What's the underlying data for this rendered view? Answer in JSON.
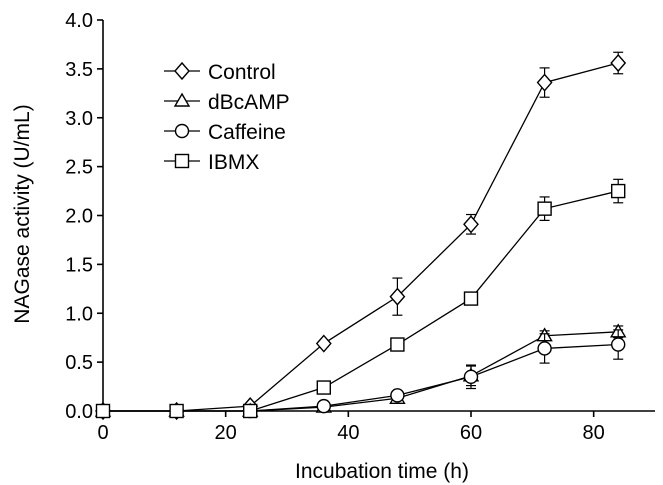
{
  "chart_data": {
    "type": "line",
    "title": "",
    "xlabel": "Incubation time (h)",
    "ylabel": "NAGase activity (U/mL)",
    "xlim": [
      0,
      90
    ],
    "ylim": [
      0,
      4.0
    ],
    "xticks": [
      0,
      20,
      40,
      60,
      80
    ],
    "xtick_labels": [
      "0",
      "20",
      "40",
      "60",
      "80"
    ],
    "yticks": [
      0,
      0.5,
      1.0,
      1.5,
      2.0,
      2.5,
      3.0,
      3.5,
      4.0
    ],
    "ytick_labels": [
      "0.0",
      "0.5",
      "1.0",
      "1.5",
      "2.0",
      "2.5",
      "3.0",
      "3.5",
      "4.0"
    ],
    "grid": false,
    "legend_position": "top-left",
    "x": [
      0,
      12,
      24,
      36,
      48,
      60,
      72,
      84
    ],
    "series": [
      {
        "name": "Control",
        "marker": "diamond",
        "values": [
          0,
          0,
          0.05,
          0.69,
          1.17,
          1.91,
          3.36,
          3.56
        ],
        "errors": [
          0,
          0,
          0,
          0.03,
          0.19,
          0.1,
          0.15,
          0.11
        ]
      },
      {
        "name": "dBcAMP",
        "marker": "triangle",
        "values": [
          0,
          0,
          0,
          0.04,
          0.13,
          0.36,
          0.77,
          0.81
        ],
        "errors": [
          0,
          0,
          0,
          0,
          0.03,
          0.1,
          0.05,
          0.06
        ]
      },
      {
        "name": "Caffeine",
        "marker": "circle",
        "values": [
          0,
          0,
          0,
          0.05,
          0.16,
          0.35,
          0.64,
          0.68
        ],
        "errors": [
          0,
          0,
          0,
          0,
          0.03,
          0.12,
          0.15,
          0.15
        ]
      },
      {
        "name": "IBMX",
        "marker": "square",
        "values": [
          0,
          0,
          0,
          0.24,
          0.68,
          1.15,
          2.07,
          2.25
        ],
        "errors": [
          0,
          0,
          0,
          0,
          0,
          0.06,
          0.12,
          0.12
        ]
      }
    ]
  }
}
